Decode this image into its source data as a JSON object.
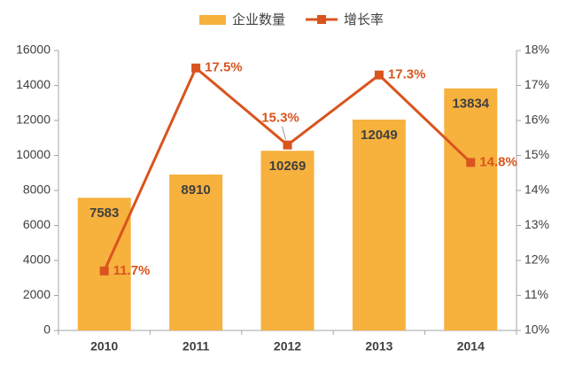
{
  "chart_data": {
    "type": "combo",
    "categories": [
      "2010",
      "2011",
      "2012",
      "2013",
      "2014"
    ],
    "series": [
      {
        "name": "企业数量",
        "type": "bar",
        "color": "#f7b13d",
        "values": [
          7583,
          8910,
          10269,
          12049,
          13834
        ]
      },
      {
        "name": "增长率",
        "type": "line",
        "axis": "y2",
        "color": "#d9541e",
        "values": [
          11.7,
          17.5,
          15.3,
          17.3,
          14.8
        ],
        "value_labels": [
          "11.7%",
          "17.5%",
          "15.3%",
          "17.3%",
          "14.8%"
        ]
      }
    ],
    "ylim": [
      0,
      16000
    ],
    "yticks": [
      0,
      2000,
      4000,
      6000,
      8000,
      10000,
      12000,
      14000,
      16000
    ],
    "y2lim": [
      10,
      18
    ],
    "y2ticks": [
      {
        "value": 10,
        "label": "10%"
      },
      {
        "value": 11,
        "label": "11%"
      },
      {
        "value": 12,
        "label": "12%"
      },
      {
        "value": 13,
        "label": "13%"
      },
      {
        "value": 14,
        "label": "14%"
      },
      {
        "value": 15,
        "label": "15%"
      },
      {
        "value": 16,
        "label": "16%"
      },
      {
        "value": 17,
        "label": "17%"
      },
      {
        "value": 18,
        "label": "18%"
      }
    ],
    "legend": "top",
    "grid": false
  }
}
